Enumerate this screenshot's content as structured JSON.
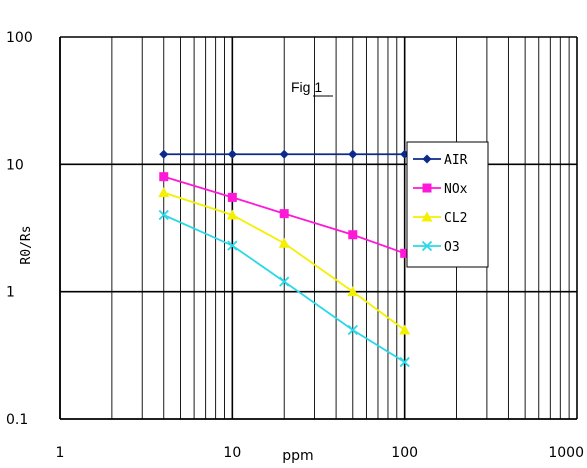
{
  "chart_data": {
    "type": "line",
    "title": "Fig 1",
    "xlabel": "ppm",
    "ylabel": "R0/Rs",
    "x_scale": "log",
    "y_scale": "log",
    "xlim": [
      1,
      1000
    ],
    "ylim": [
      0.1,
      100
    ],
    "x_ticks": [
      "1",
      "10",
      "100",
      "1000"
    ],
    "y_ticks": [
      "0.1",
      "1",
      "10",
      "100"
    ],
    "grid": true,
    "legend_position": "right",
    "x": [
      4,
      10,
      20,
      50,
      100
    ],
    "series": [
      {
        "name": "AIR",
        "color": "#0b2a8a",
        "marker": "diamond",
        "values": [
          12,
          12,
          12,
          12,
          12
        ]
      },
      {
        "name": "NOx",
        "color": "#ff18d8",
        "marker": "square",
        "values": [
          8,
          5.5,
          4.1,
          2.8,
          2.0
        ]
      },
      {
        "name": "CL2",
        "color": "#f4f000",
        "marker": "triangle",
        "values": [
          6,
          4,
          2.4,
          1.0,
          0.5
        ]
      },
      {
        "name": "O3",
        "color": "#2ad8e8",
        "marker": "x",
        "values": [
          4,
          2.3,
          1.2,
          0.5,
          0.28
        ]
      }
    ]
  }
}
